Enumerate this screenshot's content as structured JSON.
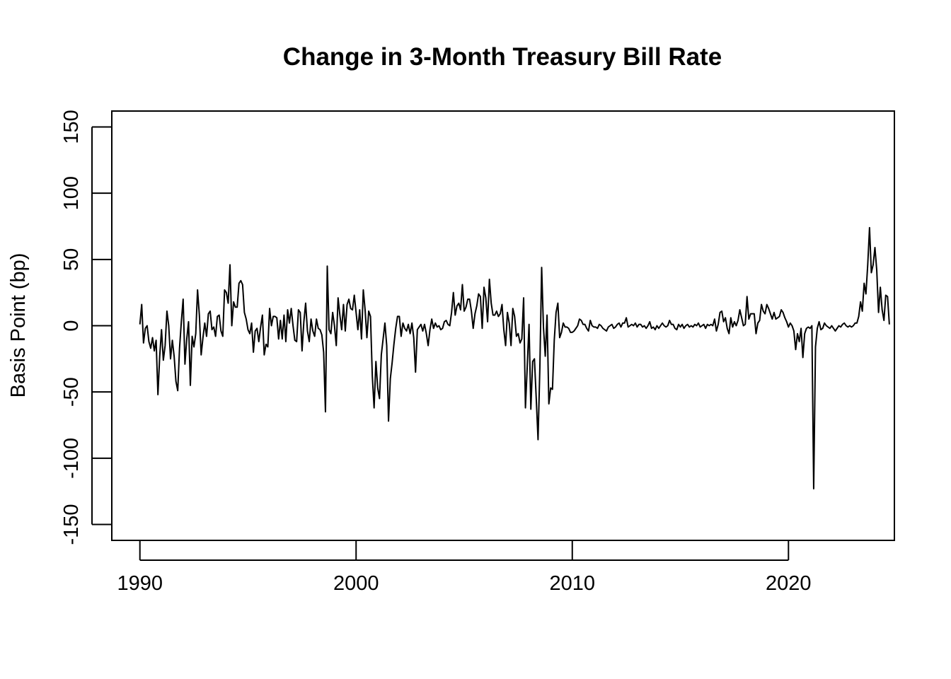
{
  "chart_data": {
    "type": "line",
    "title": "Change in 3-Month Treasury Bill Rate",
    "xlabel": "",
    "ylabel": "Basis Point (bp)",
    "xlim": [
      1988.7,
      2024.9
    ],
    "ylim": [
      -162,
      162
    ],
    "x_ticks": [
      1990,
      2000,
      2010,
      2020
    ],
    "x_tick_labels": [
      "1990",
      "2000",
      "2010",
      "2020"
    ],
    "y_ticks": [
      -150,
      -100,
      -50,
      0,
      50,
      100,
      150
    ],
    "y_tick_labels": [
      "-150",
      "-100",
      "-50",
      "0",
      "50",
      "100",
      "150"
    ],
    "grid": false,
    "legend": "none",
    "line_color": "#000000",
    "series": [
      {
        "frequency": "monthly",
        "start": "1990-01",
        "values": [
          1,
          16,
          -13,
          -2,
          0,
          -12,
          -17,
          -9,
          -19,
          -11,
          -52,
          -23,
          -3,
          -26,
          -15,
          11,
          0,
          -25,
          -11,
          -23,
          -42,
          -49,
          -17,
          3,
          20,
          -29,
          -10,
          3,
          -45,
          -8,
          -16,
          -6,
          27,
          8,
          -22,
          -9,
          2,
          -8,
          9,
          11,
          -3,
          -1,
          -8,
          7,
          8,
          -4,
          -8,
          27,
          25,
          17,
          46,
          0,
          18,
          14,
          14,
          32,
          34,
          31,
          10,
          5,
          -3,
          -6,
          2,
          -20,
          -4,
          -2,
          -12,
          -1,
          8,
          -22,
          -14,
          -16,
          13,
          0,
          7,
          7,
          6,
          -10,
          4,
          -10,
          8,
          -12,
          12,
          2,
          13,
          0,
          -11,
          -12,
          12,
          10,
          -19,
          3,
          17,
          -4,
          -12,
          5,
          -4,
          -8,
          5,
          -2,
          -3,
          -7,
          -20,
          -65,
          45,
          -3,
          -6,
          10,
          0,
          -15,
          21,
          8,
          -3,
          16,
          -4,
          16,
          20,
          13,
          12,
          23,
          10,
          -3,
          12,
          -10,
          27,
          12,
          -9,
          11,
          7,
          -38,
          -62,
          -27,
          -47,
          -55,
          -22,
          -10,
          2,
          -15,
          -72,
          -40,
          -28,
          -14,
          -2,
          7,
          7,
          -8,
          2,
          -2,
          -4,
          1,
          -6,
          2,
          -9,
          -35,
          -3,
          -1,
          1,
          -4,
          1,
          -6,
          -15,
          -3,
          5,
          -2,
          2,
          -1,
          0,
          -3,
          -2,
          3,
          4,
          1,
          0,
          10,
          25,
          8,
          15,
          17,
          12,
          31,
          11,
          14,
          20,
          20,
          11,
          -2,
          9,
          15,
          24,
          22,
          -2,
          29,
          21,
          3,
          35,
          17,
          8,
          8,
          11,
          7,
          9,
          16,
          -3,
          -15,
          10,
          2,
          -15,
          13,
          7,
          -8,
          -6,
          -13,
          -10,
          21,
          -62,
          -31,
          1,
          -63,
          -27,
          -25,
          -55,
          -86,
          -32,
          44,
          -1,
          -23,
          8,
          -59,
          -47,
          -48,
          -11,
          10,
          17,
          -9,
          -5,
          2,
          -1,
          -1,
          -2,
          -5,
          -5,
          -4,
          -2,
          0,
          5,
          4,
          1,
          1,
          -2,
          -4,
          4,
          0,
          -1,
          -1,
          -2,
          1,
          0,
          -2,
          -3,
          -4,
          -1,
          0,
          1,
          -2,
          -1,
          1,
          2,
          -1,
          2,
          2,
          6,
          -1,
          0,
          1,
          0,
          2,
          -1,
          1,
          1,
          -1,
          0,
          -2,
          0,
          3,
          -2,
          -1,
          -3,
          0,
          -2,
          0,
          2,
          0,
          -1,
          0,
          4,
          1,
          1,
          -2,
          -3,
          1,
          -1,
          1,
          -2,
          0,
          1,
          -1,
          0,
          -1,
          1,
          0,
          2,
          -1,
          0,
          1,
          -2,
          1,
          0,
          1,
          0,
          5,
          -4,
          1,
          10,
          11,
          3,
          6,
          -2,
          -6,
          6,
          -1,
          3,
          0,
          4,
          12,
          6,
          0,
          1,
          22,
          5,
          9,
          9,
          9,
          -6,
          2,
          4,
          16,
          11,
          9,
          16,
          13,
          9,
          5,
          10,
          5,
          6,
          7,
          12,
          10,
          6,
          3,
          -1,
          2,
          0,
          -4,
          -18,
          -6,
          -12,
          -2,
          -24,
          -6,
          -2,
          -1,
          -2,
          0,
          -123,
          -16,
          -2,
          3,
          -3,
          -2,
          2,
          0,
          -1,
          -2,
          0,
          -2,
          -4,
          -2,
          0,
          -1,
          1,
          2,
          0,
          -1,
          0,
          -1,
          0,
          2,
          2,
          7,
          18,
          11,
          32,
          24,
          46,
          74,
          40,
          46,
          59,
          42,
          10,
          29,
          12,
          4,
          23,
          22,
          1
        ]
      }
    ]
  }
}
